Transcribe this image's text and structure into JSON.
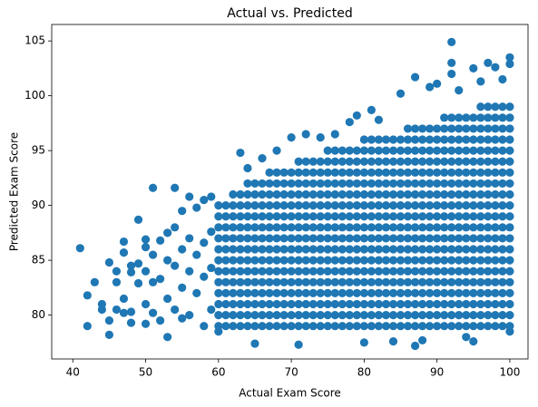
{
  "chart_data": {
    "type": "scatter",
    "title": "Actual vs. Predicted",
    "x_label": "Actual Exam Score",
    "y_label": "Predicted Exam Score",
    "color": "#1f77b4",
    "xlim": [
      37.1,
      102.5
    ],
    "xticks": [
      40,
      50,
      60,
      70,
      80,
      90,
      100
    ],
    "ylim": [
      76.0,
      106.5
    ],
    "yticks": [
      80,
      85,
      90,
      95,
      100,
      105
    ],
    "x": [
      41,
      42,
      42,
      43,
      44,
      44,
      45,
      45,
      45,
      46,
      46,
      46,
      47,
      47,
      47,
      47,
      48,
      48,
      48,
      48,
      49,
      49,
      49,
      50,
      50,
      50,
      50,
      50,
      51,
      51,
      51,
      51,
      52,
      52,
      52,
      53,
      53,
      53,
      53,
      54,
      54,
      54,
      54,
      55,
      55,
      55,
      55,
      56,
      56,
      56,
      56,
      57,
      57,
      57,
      58,
      58,
      58,
      58,
      59,
      59,
      59,
      59,
      60,
      63,
      64,
      65,
      66,
      68,
      70,
      71,
      72,
      74,
      76,
      78,
      79,
      80,
      81,
      82,
      84,
      85,
      87,
      87,
      88,
      89,
      90,
      92,
      92,
      92,
      93,
      94,
      95,
      95,
      96,
      97,
      98,
      99,
      100,
      100,
      100,
      60,
      60,
      60,
      60,
      60,
      60,
      60,
      60,
      60,
      60,
      60,
      60,
      61,
      61,
      61,
      61,
      61,
      61,
      61,
      61,
      61,
      61,
      61,
      61,
      62,
      62,
      62,
      62,
      62,
      62,
      62,
      62,
      62,
      62,
      62,
      62,
      62,
      63,
      63,
      63,
      63,
      63,
      63,
      63,
      63,
      63,
      63,
      63,
      63,
      63,
      64,
      64,
      64,
      64,
      64,
      64,
      64,
      64,
      64,
      64,
      64,
      64,
      64,
      64,
      65,
      65,
      65,
      65,
      65,
      65,
      65,
      65,
      65,
      65,
      65,
      65,
      65,
      65,
      66,
      66,
      66,
      66,
      66,
      66,
      66,
      66,
      66,
      66,
      66,
      66,
      66,
      66,
      67,
      67,
      67,
      67,
      67,
      67,
      67,
      67,
      67,
      67,
      67,
      67,
      67,
      67,
      67,
      68,
      68,
      68,
      68,
      68,
      68,
      68,
      68,
      68,
      68,
      68,
      68,
      68,
      68,
      68,
      69,
      69,
      69,
      69,
      69,
      69,
      69,
      69,
      69,
      69,
      69,
      69,
      69,
      69,
      69,
      70,
      70,
      70,
      70,
      70,
      70,
      70,
      70,
      70,
      70,
      70,
      70,
      70,
      70,
      70,
      71,
      71,
      71,
      71,
      71,
      71,
      71,
      71,
      71,
      71,
      71,
      71,
      71,
      71,
      71,
      71,
      72,
      72,
      72,
      72,
      72,
      72,
      72,
      72,
      72,
      72,
      72,
      72,
      72,
      72,
      72,
      72,
      73,
      73,
      73,
      73,
      73,
      73,
      73,
      73,
      73,
      73,
      73,
      73,
      73,
      73,
      73,
      73,
      74,
      74,
      74,
      74,
      74,
      74,
      74,
      74,
      74,
      74,
      74,
      74,
      74,
      74,
      74,
      74,
      75,
      75,
      75,
      75,
      75,
      75,
      75,
      75,
      75,
      75,
      75,
      75,
      75,
      75,
      75,
      75,
      75,
      76,
      76,
      76,
      76,
      76,
      76,
      76,
      76,
      76,
      76,
      76,
      76,
      76,
      76,
      76,
      76,
      76,
      77,
      77,
      77,
      77,
      77,
      77,
      77,
      77,
      77,
      77,
      77,
      77,
      77,
      77,
      77,
      77,
      77,
      78,
      78,
      78,
      78,
      78,
      78,
      78,
      78,
      78,
      78,
      78,
      78,
      78,
      78,
      78,
      78,
      78,
      79,
      79,
      79,
      79,
      79,
      79,
      79,
      79,
      79,
      79,
      79,
      79,
      79,
      79,
      79,
      79,
      79,
      80,
      80,
      80,
      80,
      80,
      80,
      80,
      80,
      80,
      80,
      80,
      80,
      80,
      80,
      80,
      80,
      80,
      80,
      81,
      81,
      81,
      81,
      81,
      81,
      81,
      81,
      81,
      81,
      81,
      81,
      81,
      81,
      81,
      81,
      81,
      81,
      82,
      82,
      82,
      82,
      82,
      82,
      82,
      82,
      82,
      82,
      82,
      82,
      82,
      82,
      82,
      82,
      82,
      82,
      83,
      83,
      83,
      83,
      83,
      83,
      83,
      83,
      83,
      83,
      83,
      83,
      83,
      83,
      83,
      83,
      83,
      83,
      84,
      84,
      84,
      84,
      84,
      84,
      84,
      84,
      84,
      84,
      84,
      84,
      84,
      84,
      84,
      84,
      84,
      84,
      85,
      85,
      85,
      85,
      85,
      85,
      85,
      85,
      85,
      85,
      85,
      85,
      85,
      85,
      85,
      85,
      85,
      85,
      86,
      86,
      86,
      86,
      86,
      86,
      86,
      86,
      86,
      86,
      86,
      86,
      86,
      86,
      86,
      86,
      86,
      86,
      86,
      87,
      87,
      87,
      87,
      87,
      87,
      87,
      87,
      87,
      87,
      87,
      87,
      87,
      87,
      87,
      87,
      87,
      87,
      87,
      88,
      88,
      88,
      88,
      88,
      88,
      88,
      88,
      88,
      88,
      88,
      88,
      88,
      88,
      88,
      88,
      88,
      88,
      88,
      89,
      89,
      89,
      89,
      89,
      89,
      89,
      89,
      89,
      89,
      89,
      89,
      89,
      89,
      89,
      89,
      89,
      89,
      89,
      90,
      90,
      90,
      90,
      90,
      90,
      90,
      90,
      90,
      90,
      90,
      90,
      90,
      90,
      90,
      90,
      90,
      90,
      90,
      91,
      91,
      91,
      91,
      91,
      91,
      91,
      91,
      91,
      91,
      91,
      91,
      91,
      91,
      91,
      91,
      91,
      91,
      91,
      91,
      92,
      92,
      92,
      92,
      92,
      92,
      92,
      92,
      92,
      92,
      92,
      92,
      92,
      92,
      92,
      92,
      92,
      92,
      92,
      92,
      93,
      93,
      93,
      93,
      93,
      93,
      93,
      93,
      93,
      93,
      93,
      93,
      93,
      93,
      93,
      93,
      93,
      93,
      93,
      93,
      94,
      94,
      94,
      94,
      94,
      94,
      94,
      94,
      94,
      94,
      94,
      94,
      94,
      94,
      94,
      94,
      94,
      94,
      94,
      94,
      95,
      95,
      95,
      95,
      95,
      95,
      95,
      95,
      95,
      95,
      95,
      95,
      95,
      95,
      95,
      95,
      95,
      95,
      95,
      95,
      96,
      96,
      96,
      96,
      96,
      96,
      96,
      96,
      96,
      96,
      96,
      96,
      96,
      96,
      96,
      96,
      96,
      96,
      96,
      96,
      96,
      97,
      97,
      97,
      97,
      97,
      97,
      97,
      97,
      97,
      97,
      97,
      97,
      97,
      97,
      97,
      97,
      97,
      97,
      97,
      97,
      97,
      98,
      98,
      98,
      98,
      98,
      98,
      98,
      98,
      98,
      98,
      98,
      98,
      98,
      98,
      98,
      98,
      98,
      98,
      98,
      98,
      98,
      99,
      99,
      99,
      99,
      99,
      99,
      99,
      99,
      99,
      99,
      99,
      99,
      99,
      99,
      99,
      99,
      99,
      99,
      99,
      99,
      99,
      100,
      100,
      100,
      100,
      100,
      100,
      100,
      100,
      100,
      100,
      100,
      100,
      100,
      100,
      100,
      100,
      100,
      100,
      100,
      100,
      100
    ],
    "values": [
      86.1,
      81.8,
      79,
      83,
      80.5,
      81,
      84.8,
      78.2,
      79.5,
      84,
      83,
      80.5,
      86.7,
      85.7,
      80.2,
      81.5,
      84.5,
      83.9,
      79.3,
      80.3,
      88.7,
      84.7,
      82.9,
      86.9,
      86.2,
      84,
      81,
      79.2,
      91.6,
      85.5,
      83,
      80.2,
      86.8,
      83.3,
      79.5,
      87.5,
      85,
      81.5,
      78,
      91.6,
      88,
      84.5,
      80.5,
      89.5,
      86,
      82.5,
      79.7,
      90.8,
      87,
      84,
      80,
      89.8,
      85.5,
      82,
      90.5,
      86.6,
      83.5,
      79,
      90.8,
      87.6,
      84.3,
      80.5,
      78.5,
      94.8,
      93.4,
      77.4,
      94.3,
      95,
      96.2,
      77.3,
      96.5,
      96.2,
      96.5,
      97.6,
      98.2,
      77.5,
      98.7,
      97.8,
      77.6,
      100.2,
      101.7,
      77.2,
      77.7,
      100.8,
      101.1,
      104.9,
      103,
      102,
      100.5,
      78,
      102.5,
      77.6,
      101.3,
      103,
      102.6,
      101.5,
      103.5,
      102.9,
      78.5,
      79,
      80,
      81,
      82,
      83,
      84,
      85,
      86,
      87,
      88,
      89,
      90,
      79,
      80,
      81,
      82,
      83,
      84,
      85,
      86,
      87,
      88,
      89,
      90,
      79,
      80,
      81,
      82,
      83,
      84,
      85,
      86,
      87,
      88,
      89,
      90,
      91,
      79,
      80,
      81,
      82,
      83,
      84,
      85,
      86,
      87,
      88,
      89,
      90,
      91,
      79,
      80,
      81,
      82,
      83,
      84,
      85,
      86,
      87,
      88,
      89,
      90,
      91,
      92,
      79,
      80,
      81,
      82,
      83,
      84,
      85,
      86,
      87,
      88,
      89,
      90,
      91,
      92,
      79,
      80,
      81,
      82,
      83,
      84,
      85,
      86,
      87,
      88,
      89,
      90,
      91,
      92,
      79,
      80,
      81,
      82,
      83,
      84,
      85,
      86,
      87,
      88,
      89,
      90,
      91,
      92,
      93,
      79,
      80,
      81,
      82,
      83,
      84,
      85,
      86,
      87,
      88,
      89,
      90,
      91,
      92,
      93,
      79,
      80,
      81,
      82,
      83,
      84,
      85,
      86,
      87,
      88,
      89,
      90,
      91,
      92,
      93,
      79,
      80,
      81,
      82,
      83,
      84,
      85,
      86,
      87,
      88,
      89,
      90,
      91,
      92,
      93,
      79,
      80,
      81,
      82,
      83,
      84,
      85,
      86,
      87,
      88,
      89,
      90,
      91,
      92,
      93,
      94,
      79,
      80,
      81,
      82,
      83,
      84,
      85,
      86,
      87,
      88,
      89,
      90,
      91,
      92,
      93,
      94,
      79,
      80,
      81,
      82,
      83,
      84,
      85,
      86,
      87,
      88,
      89,
      90,
      91,
      92,
      93,
      94,
      79,
      80,
      81,
      82,
      83,
      84,
      85,
      86,
      87,
      88,
      89,
      90,
      91,
      92,
      93,
      94,
      79,
      80,
      81,
      82,
      83,
      84,
      85,
      86,
      87,
      88,
      89,
      90,
      91,
      92,
      93,
      94,
      95,
      79,
      80,
      81,
      82,
      83,
      84,
      85,
      86,
      87,
      88,
      89,
      90,
      91,
      92,
      93,
      94,
      95,
      79,
      80,
      81,
      82,
      83,
      84,
      85,
      86,
      87,
      88,
      89,
      90,
      91,
      92,
      93,
      94,
      95,
      79,
      80,
      81,
      82,
      83,
      84,
      85,
      86,
      87,
      88,
      89,
      90,
      91,
      92,
      93,
      94,
      95,
      79,
      80,
      81,
      82,
      83,
      84,
      85,
      86,
      87,
      88,
      89,
      90,
      91,
      92,
      93,
      94,
      95,
      79,
      80,
      81,
      82,
      83,
      84,
      85,
      86,
      87,
      88,
      89,
      90,
      91,
      92,
      93,
      94,
      95,
      96,
      79,
      80,
      81,
      82,
      83,
      84,
      85,
      86,
      87,
      88,
      89,
      90,
      91,
      92,
      93,
      94,
      95,
      96,
      79,
      80,
      81,
      82,
      83,
      84,
      85,
      86,
      87,
      88,
      89,
      90,
      91,
      92,
      93,
      94,
      95,
      96,
      79,
      80,
      81,
      82,
      83,
      84,
      85,
      86,
      87,
      88,
      89,
      90,
      91,
      92,
      93,
      94,
      95,
      96,
      79,
      80,
      81,
      82,
      83,
      84,
      85,
      86,
      87,
      88,
      89,
      90,
      91,
      92,
      93,
      94,
      95,
      96,
      79,
      80,
      81,
      82,
      83,
      84,
      85,
      86,
      87,
      88,
      89,
      90,
      91,
      92,
      93,
      94,
      95,
      96,
      79,
      80,
      81,
      82,
      83,
      84,
      85,
      86,
      87,
      88,
      89,
      90,
      91,
      92,
      93,
      94,
      95,
      96,
      97,
      79,
      80,
      81,
      82,
      83,
      84,
      85,
      86,
      87,
      88,
      89,
      90,
      91,
      92,
      93,
      94,
      95,
      96,
      97,
      79,
      80,
      81,
      82,
      83,
      84,
      85,
      86,
      87,
      88,
      89,
      90,
      91,
      92,
      93,
      94,
      95,
      96,
      97,
      79,
      80,
      81,
      82,
      83,
      84,
      85,
      86,
      87,
      88,
      89,
      90,
      91,
      92,
      93,
      94,
      95,
      96,
      97,
      79,
      80,
      81,
      82,
      83,
      84,
      85,
      86,
      87,
      88,
      89,
      90,
      91,
      92,
      93,
      94,
      95,
      96,
      97,
      79,
      80,
      81,
      82,
      83,
      84,
      85,
      86,
      87,
      88,
      89,
      90,
      91,
      92,
      93,
      94,
      95,
      96,
      97,
      98,
      79,
      80,
      81,
      82,
      83,
      84,
      85,
      86,
      87,
      88,
      89,
      90,
      91,
      92,
      93,
      94,
      95,
      96,
      97,
      98,
      79,
      80,
      81,
      82,
      83,
      84,
      85,
      86,
      87,
      88,
      89,
      90,
      91,
      92,
      93,
      94,
      95,
      96,
      97,
      98,
      79,
      80,
      81,
      82,
      83,
      84,
      85,
      86,
      87,
      88,
      89,
      90,
      91,
      92,
      93,
      94,
      95,
      96,
      97,
      98,
      79,
      80,
      81,
      82,
      83,
      84,
      85,
      86,
      87,
      88,
      89,
      90,
      91,
      92,
      93,
      94,
      95,
      96,
      97,
      98,
      79,
      80,
      81,
      82,
      83,
      84,
      85,
      86,
      87,
      88,
      89,
      90,
      91,
      92,
      93,
      94,
      95,
      96,
      97,
      98,
      99,
      79,
      80,
      81,
      82,
      83,
      84,
      85,
      86,
      87,
      88,
      89,
      90,
      91,
      92,
      93,
      94,
      95,
      96,
      97,
      98,
      99,
      79,
      80,
      81,
      82,
      83,
      84,
      85,
      86,
      87,
      88,
      89,
      90,
      91,
      92,
      93,
      94,
      95,
      96,
      97,
      98,
      99,
      79,
      80,
      81,
      82,
      83,
      84,
      85,
      86,
      87,
      88,
      89,
      90,
      91,
      92,
      93,
      94,
      95,
      96,
      97,
      98,
      99,
      79,
      80,
      81,
      82,
      83,
      84,
      85,
      86,
      87,
      88,
      89,
      90,
      91,
      92,
      93,
      94,
      95,
      96,
      97,
      98,
      99
    ]
  }
}
